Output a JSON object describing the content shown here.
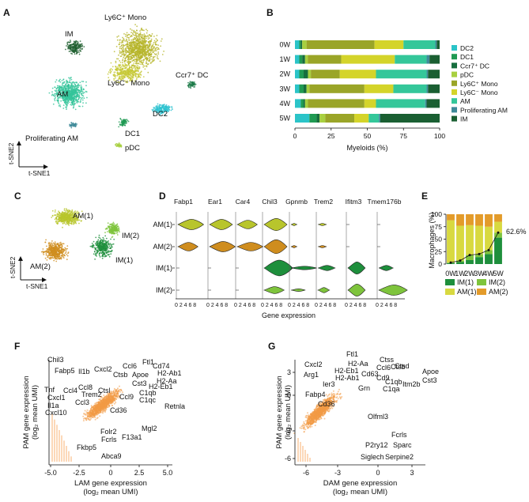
{
  "panels": {
    "a": "A",
    "b": "B",
    "c": "C",
    "d": "D",
    "e": "E",
    "f": "F",
    "g": "G"
  },
  "tsne_a": {
    "clusters": [
      "IM",
      "Ly6C⁺ Mono",
      "Ly6C⁻ Mono",
      "AM",
      "Ccr7⁺ DC",
      "DC2",
      "DC1",
      "Proliferating AM",
      "pDC"
    ],
    "axis_y": "t-SNE2",
    "axis_x": "t-SNE1"
  },
  "tsne_c": {
    "clusters": [
      "AM(1)",
      "AM(2)",
      "IM(2)",
      "IM(1)"
    ],
    "axis_y": "t-SNE2",
    "axis_x": "t-SNE1"
  },
  "chart_data": [
    {
      "type": "bar",
      "orientation": "horizontal-stacked",
      "categories": [
        "0W",
        "1W",
        "2W",
        "3W",
        "4W",
        "5W"
      ],
      "xlabel": "Myeloids (%)",
      "xlim": [
        0,
        100
      ],
      "xticks": [
        "0",
        "25",
        "50",
        "75",
        "100"
      ],
      "series": [
        {
          "name": "DC2",
          "color": "#2bc4c8",
          "values": [
            3,
            3,
            3,
            3,
            4,
            10
          ]
        },
        {
          "name": "DC1",
          "color": "#1f9a52",
          "values": [
            1,
            2,
            3,
            3,
            2,
            5
          ]
        },
        {
          "name": "Ccr7⁺ DC",
          "color": "#176e3e",
          "values": [
            1,
            2,
            3,
            2,
            1,
            2
          ]
        },
        {
          "name": "pDC",
          "color": "#a8d040",
          "values": [
            3,
            2,
            2,
            2,
            2,
            4
          ]
        },
        {
          "name": "Ly6C⁺ Mono",
          "color": "#9aa528",
          "values": [
            47,
            23,
            20,
            38,
            39,
            20
          ]
        },
        {
          "name": "Ly6C⁻ Mono",
          "color": "#d4d42a",
          "values": [
            20,
            37,
            25,
            20,
            8,
            10
          ]
        },
        {
          "name": "AM",
          "color": "#34c79a",
          "values": [
            22,
            22,
            35,
            23,
            34,
            7
          ]
        },
        {
          "name": "Proliferating AM",
          "color": "#3f8a99",
          "values": [
            1,
            2,
            1,
            1,
            1,
            1
          ]
        },
        {
          "name": "IM",
          "color": "#1a5f32",
          "values": [
            2,
            7,
            8,
            8,
            9,
            41
          ]
        }
      ]
    },
    {
      "type": "violin",
      "genes": [
        "Fabp1",
        "Ear1",
        "Car4",
        "Chil3",
        "Gpnmb",
        "Trem2",
        "Ifitm3",
        "Tmem176b"
      ],
      "groups": [
        "AM(1)",
        "AM(2)",
        "IM(1)",
        "IM(2)"
      ],
      "group_colors": [
        "#b8c52c",
        "#cf8d1e",
        "#1e8f3c",
        "#7ec43c"
      ],
      "xlabel": "Gene expression",
      "tick_labels": [
        "0",
        "2",
        "4",
        "6",
        "8"
      ]
    },
    {
      "type": "bar",
      "orientation": "vertical-stacked",
      "categories": [
        "0W",
        "1W",
        "2W",
        "3W",
        "4W",
        "5W"
      ],
      "ylabel": "Macrophages (%)",
      "ylim": [
        0,
        100
      ],
      "yticks": [
        "0",
        "25",
        "50",
        "75",
        "100"
      ],
      "annotation": "62.6%",
      "series": [
        {
          "name": "IM(1)",
          "color": "#1e8f3c",
          "values": [
            2,
            4,
            8,
            14,
            20,
            53
          ]
        },
        {
          "name": "IM(2)",
          "color": "#7ec43c",
          "values": [
            1,
            3,
            10,
            6,
            8,
            10
          ]
        },
        {
          "name": "AM(1)",
          "color": "#d8d940",
          "values": [
            85,
            70,
            60,
            57,
            47,
            22
          ]
        },
        {
          "name": "AM(2)",
          "color": "#e39b2a",
          "values": [
            12,
            23,
            22,
            23,
            25,
            15
          ]
        }
      ],
      "line_values": [
        3,
        7,
        18,
        20,
        28,
        63
      ]
    },
    {
      "type": "scatter",
      "xlabel": "LAM gene expression",
      "xlabel2": "(log₂ mean UMI)",
      "ylabel": "PAM gene expression",
      "ylabel2": "(log₂ mean UMI)",
      "xticks": [
        "-5.0",
        "-2.5",
        "0",
        "2.5",
        "5.0"
      ],
      "labeled_genes": [
        "Chil3",
        "Fabp5",
        "Il1b",
        "Cxcl2",
        "Ccl6",
        "Ftl1",
        "Cd74",
        "Ctsb",
        "Apoe",
        "H2-Ab1",
        "H2-Aa",
        "H2-Eb1",
        "Cst3",
        "C1qb",
        "C1qc",
        "Retnla",
        "Ccl9",
        "Cd36",
        "Ctsl",
        "Trem2",
        "Ccl8",
        "Ccl4",
        "Tnf",
        "Cxcl1",
        "Il1a",
        "Cxcl10",
        "Ccl3",
        "Mgl2",
        "Folr2",
        "F13a1",
        "Fcrls",
        "Fkbp5",
        "Abca9"
      ]
    },
    {
      "type": "scatter",
      "xlabel": "DAM gene expression",
      "xlabel2": "(log₂ mean UMI)",
      "ylabel": "PAM gene expression",
      "ylabel2": "(log₂ mean UMI)",
      "xticks": [
        "-6",
        "-3",
        "0",
        "3"
      ],
      "yticks": [
        "3",
        "0",
        "-3",
        "-6"
      ],
      "labeled_genes": [
        "Ftl1",
        "Cxcl2",
        "H2-Aa",
        "Ctss",
        "Ctsd",
        "Arg1",
        "H2-Eb1",
        "Cd63",
        "Ccl6",
        "Ctsb",
        "Apoe",
        "Ier3",
        "H2-Ab1",
        "Cd9",
        "C1qb",
        "Cst3",
        "Grn",
        "C1qa",
        "Itm2b",
        "Fabp4",
        "Cd36",
        "Olfml3",
        "Fcrls",
        "P2ry12",
        "Sparc",
        "Siglech",
        "Serpine2"
      ]
    }
  ]
}
